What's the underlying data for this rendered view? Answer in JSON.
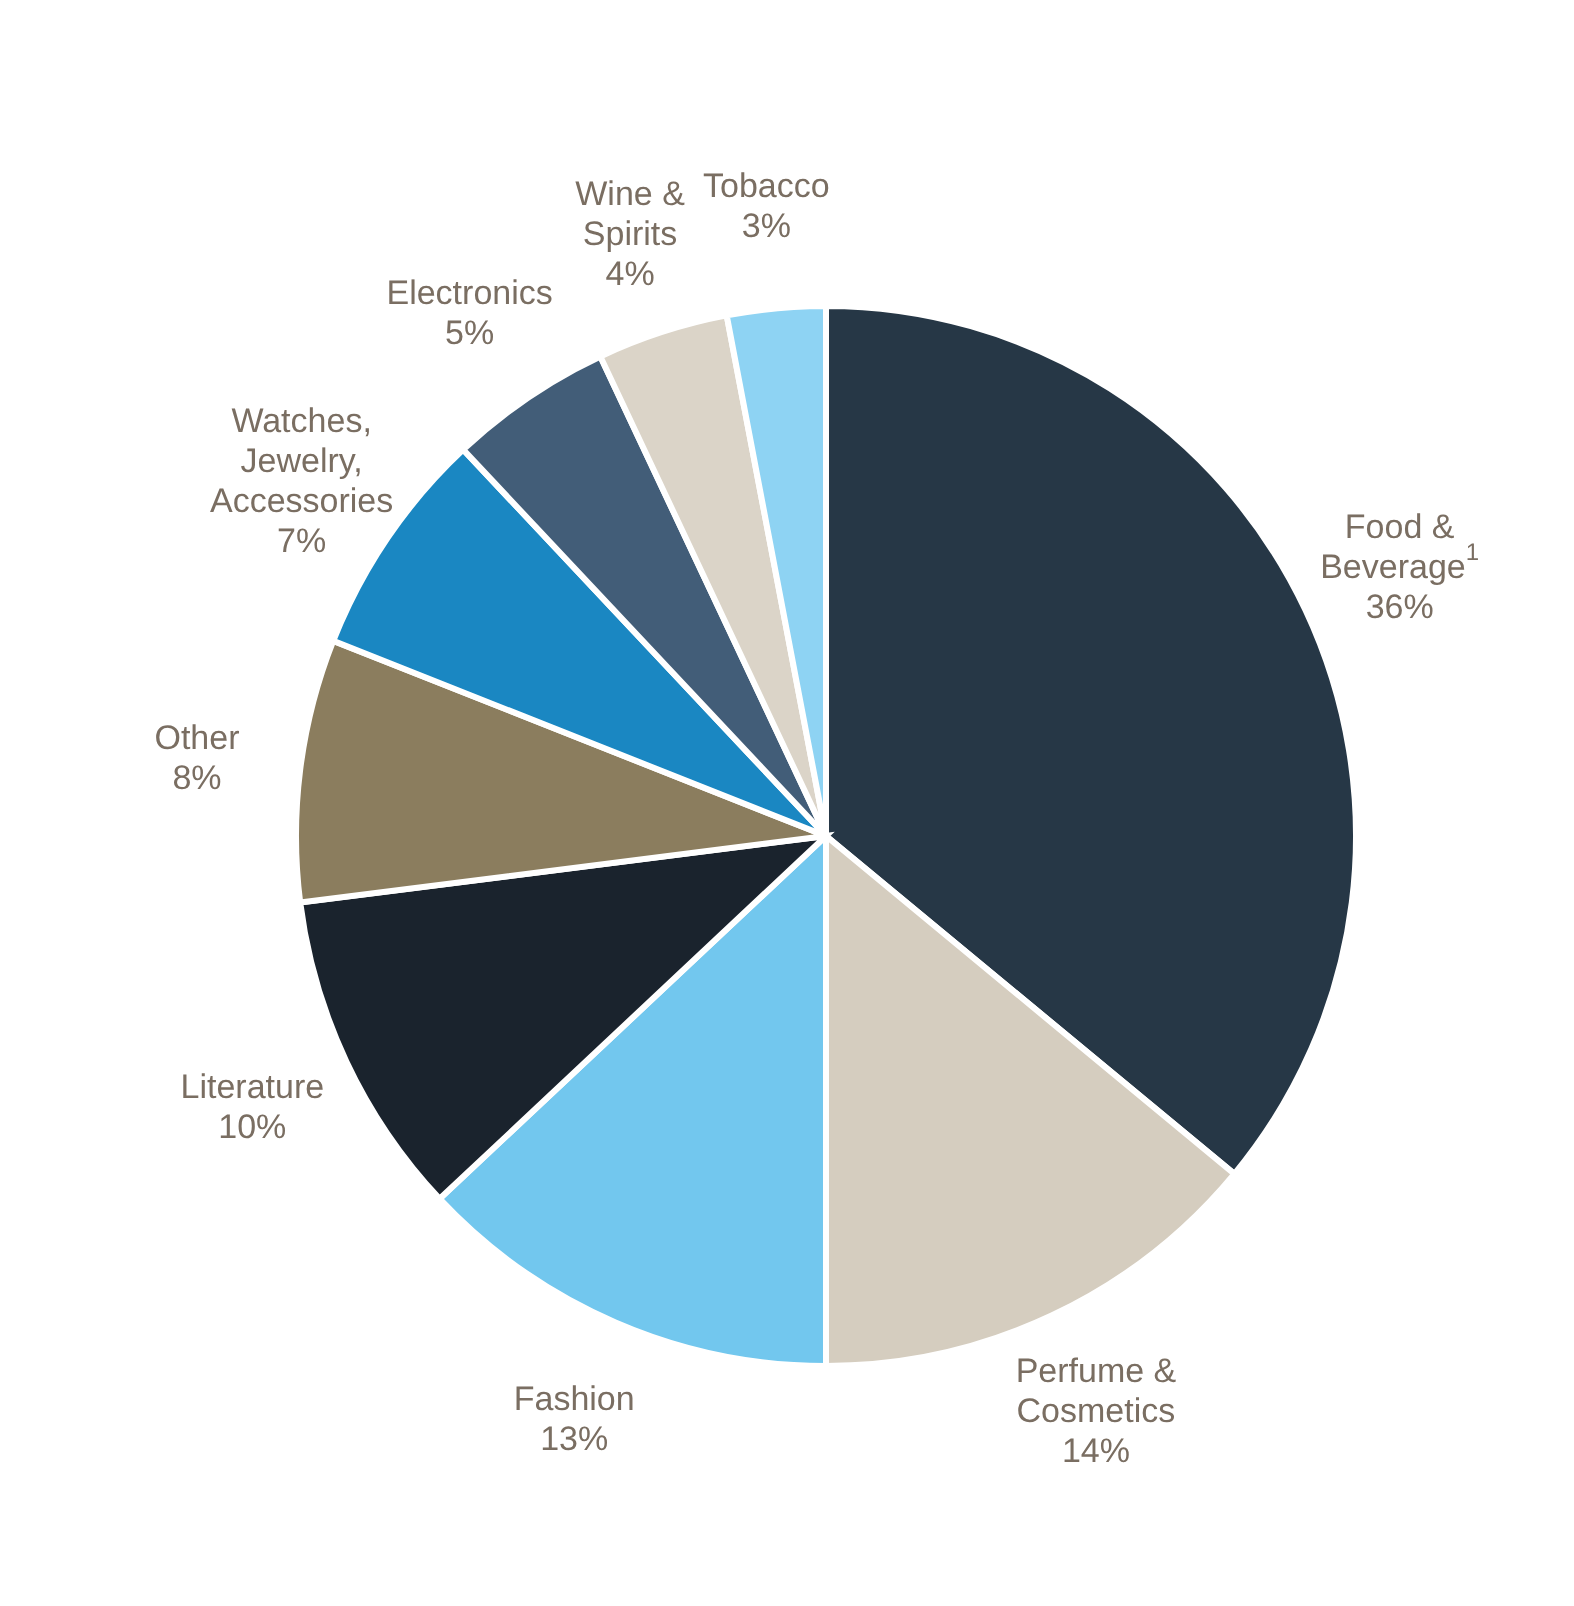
{
  "chart_data": {
    "type": "pie",
    "categories": [
      "Food & Beverage$^{1}$",
      "Perfume & Cosmetics",
      "Fashion",
      "Literature",
      "Other",
      "Watches, Jewelry, Accessories",
      "Electronics",
      "Wine & Spirits",
      "Tobacco"
    ],
    "values": [
      36,
      14,
      13,
      10,
      8,
      7,
      5,
      4,
      3
    ],
    "value_labels": [
      "36%",
      "14%",
      "13%",
      "10%",
      "8%",
      "7%",
      "5%",
      "4%",
      "3%"
    ],
    "colors": [
      "#263746",
      "#d5cdbf",
      "#72c7ee",
      "#1a232d",
      "#8b7d5e",
      "#1a87c2",
      "#425d78",
      "#dbd4c8",
      "#8ed3f3"
    ],
    "legend": false
  }
}
